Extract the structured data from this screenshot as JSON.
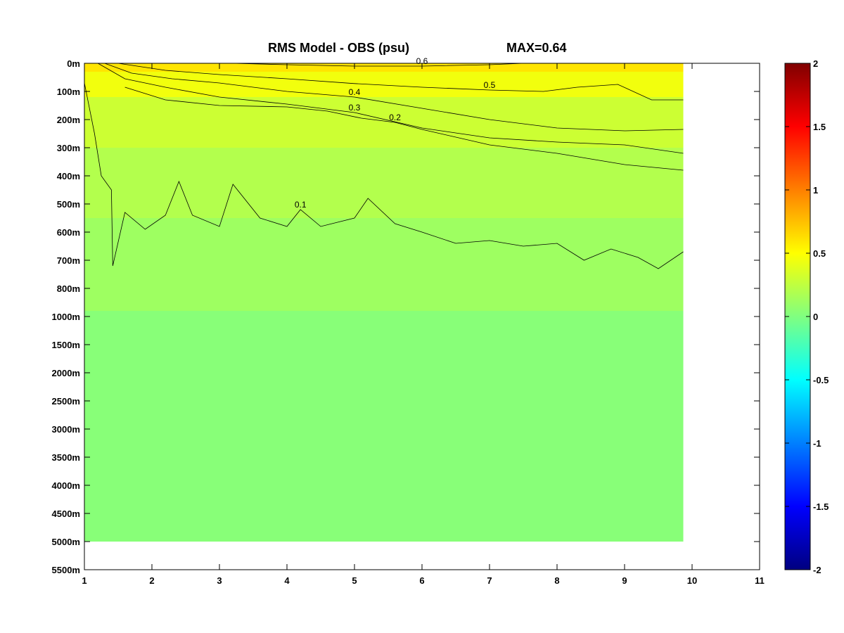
{
  "chart_data": {
    "type": "heatmap",
    "title": "RMS Model - OBS (psu)",
    "subtitle": "MAX=0.64",
    "xlabel": "",
    "ylabel": "",
    "xlim": [
      1,
      11
    ],
    "x_ticks": [
      "1",
      "2",
      "3",
      "4",
      "5",
      "6",
      "7",
      "8",
      "9",
      "10",
      "11"
    ],
    "y_ticks": [
      "0m",
      "100m",
      "200m",
      "300m",
      "400m",
      "500m",
      "600m",
      "700m",
      "800m",
      "1000m",
      "1500m",
      "2000m",
      "2500m",
      "3000m",
      "3500m",
      "4000m",
      "4500m",
      "5000m",
      "5500m"
    ],
    "data_x_range": [
      1,
      9.87
    ],
    "grid": false,
    "colorbar": {
      "min": -2,
      "max": 2,
      "ticks": [
        "2",
        "1.5",
        "1",
        "0.5",
        "0",
        "-0.5",
        "-1",
        "-1.5",
        "-2"
      ],
      "colormap": "jet",
      "placement": "right"
    },
    "value_bands": [
      {
        "x": [
          1,
          9.87
        ],
        "depth_index": [
          0.0,
          0.3
        ],
        "value": 0.6
      },
      {
        "x": [
          1,
          9.87
        ],
        "depth_index": [
          0.3,
          1.2
        ],
        "value": 0.45
      },
      {
        "x": [
          1,
          9.87
        ],
        "depth_index": [
          1.2,
          3.0
        ],
        "value": 0.3
      },
      {
        "x": [
          1,
          9.87
        ],
        "depth_index": [
          3.0,
          5.5
        ],
        "value": 0.2
      },
      {
        "x": [
          1,
          9.87
        ],
        "depth_index": [
          5.5,
          8.8
        ],
        "value": 0.12
      },
      {
        "x": [
          1,
          9.87
        ],
        "depth_index": [
          8.8,
          17.0
        ],
        "value": 0.03
      }
    ],
    "contours": [
      {
        "level": 0.6,
        "label": "0.6",
        "points": [
          [
            3.2,
            0.0
          ],
          [
            4.0,
            0.05
          ],
          [
            5.0,
            0.1
          ],
          [
            6.0,
            0.1
          ],
          [
            7.0,
            0.05
          ],
          [
            7.5,
            0.0
          ]
        ]
      },
      {
        "level": 0.5,
        "label": "0.5",
        "points": [
          [
            1.5,
            0.0
          ],
          [
            2.2,
            0.25
          ],
          [
            3.0,
            0.4
          ],
          [
            4.0,
            0.55
          ],
          [
            5.0,
            0.72
          ],
          [
            6.0,
            0.85
          ],
          [
            7.0,
            0.95
          ],
          [
            7.8,
            1.0
          ],
          [
            8.3,
            0.85
          ],
          [
            8.9,
            0.75
          ],
          [
            9.4,
            1.3
          ],
          [
            9.87,
            1.3
          ]
        ]
      },
      {
        "level": 0.4,
        "label": "0.4",
        "points": [
          [
            1.3,
            0.0
          ],
          [
            1.7,
            0.35
          ],
          [
            2.3,
            0.55
          ],
          [
            3.0,
            0.7
          ],
          [
            4.0,
            1.0
          ],
          [
            5.0,
            1.2
          ],
          [
            6.0,
            1.6
          ],
          [
            7.0,
            2.0
          ],
          [
            8.0,
            2.3
          ],
          [
            9.0,
            2.4
          ],
          [
            9.87,
            2.35
          ]
        ]
      },
      {
        "level": 0.3,
        "label": "0.3",
        "points": [
          [
            1.2,
            0.0
          ],
          [
            1.6,
            0.55
          ],
          [
            2.2,
            0.85
          ],
          [
            3.0,
            1.2
          ],
          [
            4.0,
            1.45
          ],
          [
            5.0,
            1.75
          ],
          [
            6.0,
            2.3
          ],
          [
            7.0,
            2.65
          ],
          [
            8.0,
            2.8
          ],
          [
            9.0,
            2.9
          ],
          [
            9.87,
            3.2
          ]
        ]
      },
      {
        "level": 0.2,
        "label": "0.2",
        "points": [
          [
            1.6,
            0.85
          ],
          [
            2.2,
            1.3
          ],
          [
            3.0,
            1.5
          ],
          [
            4.0,
            1.55
          ],
          [
            4.6,
            1.7
          ],
          [
            5.1,
            1.95
          ],
          [
            5.6,
            2.1
          ],
          [
            6.0,
            2.35
          ],
          [
            7.0,
            2.9
          ],
          [
            8.0,
            3.2
          ],
          [
            9.0,
            3.6
          ],
          [
            9.87,
            3.8
          ]
        ]
      },
      {
        "level": 0.1,
        "label": "0.1",
        "points": [
          [
            1.0,
            0.7
          ],
          [
            1.15,
            2.5
          ],
          [
            1.25,
            4.0
          ],
          [
            1.4,
            4.5
          ],
          [
            1.42,
            7.2
          ],
          [
            1.6,
            5.3
          ],
          [
            1.9,
            5.9
          ],
          [
            2.2,
            5.4
          ],
          [
            2.4,
            4.2
          ],
          [
            2.6,
            5.4
          ],
          [
            3.0,
            5.8
          ],
          [
            3.2,
            4.3
          ],
          [
            3.6,
            5.5
          ],
          [
            4.0,
            5.8
          ],
          [
            4.2,
            5.2
          ],
          [
            4.5,
            5.8
          ],
          [
            5.0,
            5.5
          ],
          [
            5.2,
            4.8
          ],
          [
            5.6,
            5.7
          ],
          [
            6.0,
            6.0
          ],
          [
            6.5,
            6.4
          ],
          [
            7.0,
            6.3
          ],
          [
            7.5,
            6.5
          ],
          [
            8.0,
            6.4
          ],
          [
            8.4,
            7.0
          ],
          [
            8.8,
            6.6
          ],
          [
            9.2,
            6.9
          ],
          [
            9.5,
            7.3
          ],
          [
            9.87,
            6.7
          ]
        ]
      }
    ]
  }
}
